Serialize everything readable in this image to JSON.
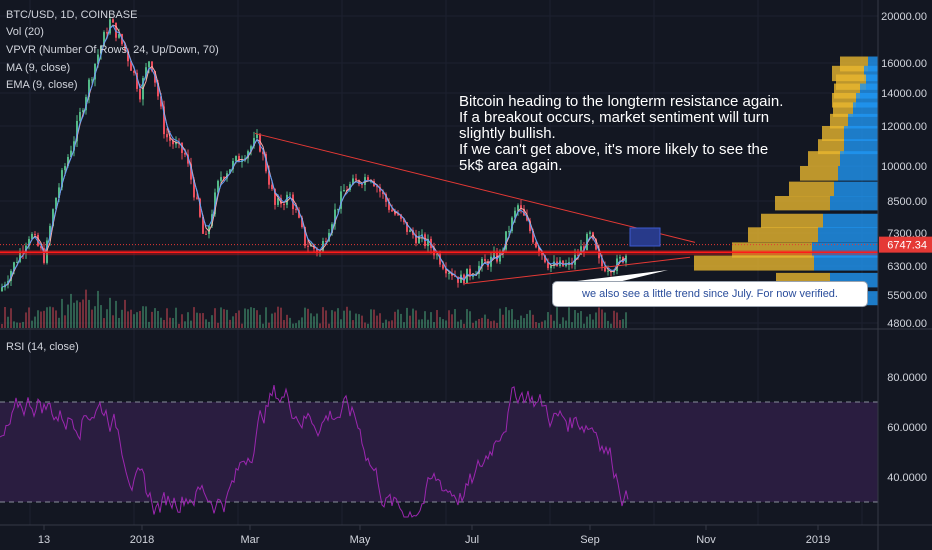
{
  "legend": {
    "symbol": "BTC/USD, 1D, COINBASE",
    "vol": "Vol (20)",
    "vpvr": "VPVR (Number Of Rows, 24, Up/Down, 70)",
    "ma": "MA (9, close)",
    "ema": "EMA (9, close)",
    "rsi": "RSI (14, close)"
  },
  "annotation": {
    "lines": [
      "Bitcoin heading to the longterm resistance again.",
      "If a breakout occurs, market sentiment will turn",
      "slightly bullish.",
      "If we can't get above, it's more likely to see the",
      "5k$ area again."
    ]
  },
  "callout": {
    "text": "we also see a little trend since July. For now verified."
  },
  "price_axis": {
    "ticks": [
      "20000.00",
      "16000.00",
      "14000.00",
      "12000.00",
      "10000.00",
      "8500.00",
      "7300.00",
      "6300.00",
      "5500.00",
      "4800.00"
    ],
    "tick_values": [
      20000,
      16000,
      14000,
      12000,
      10000,
      8500,
      7300,
      6300,
      5500,
      4800
    ],
    "last_price": "6747.34",
    "last_price_value": 6747.34
  },
  "rsi_axis": {
    "ticks": [
      "80.0000",
      "60.0000",
      "40.0000"
    ],
    "tick_values": [
      80,
      60,
      40
    ],
    "upper_band": 70,
    "lower_band": 30
  },
  "time_axis": {
    "ticks": [
      "13",
      "2018",
      "Mar",
      "May",
      "Jul",
      "Sep",
      "Nov",
      "2019"
    ]
  },
  "colors": {
    "background": "#131722",
    "up_candle": "#53b987",
    "down_candle": "#eb4d5c",
    "ma_line": "#f7a9a9",
    "ema_line": "#5b9cf6",
    "trendline": "#e53935",
    "support_band": "#ff1a1a",
    "vpvr_up": "#e8b730",
    "vpvr_down": "#2196f3",
    "rsi_line": "#9c27b0",
    "rsi_band": "#2a1d40"
  }
}
